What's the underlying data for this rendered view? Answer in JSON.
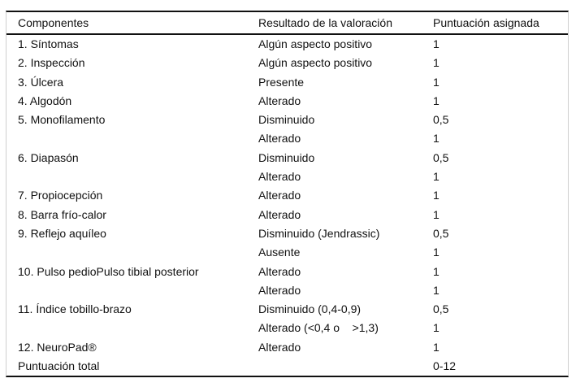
{
  "colors": {
    "background": "#ffffff",
    "text": "#111111",
    "rule_dark": "#111111",
    "rule_light": "#cfcfcf"
  },
  "table": {
    "columns": {
      "component": "Componentes",
      "result": "Resultado de la valoración",
      "score": "Puntuación asignada"
    },
    "rows": [
      {
        "component": "1. Síntomas",
        "result": "Algún aspecto positivo",
        "score": "1"
      },
      {
        "component": "2. Inspección",
        "result": "Algún aspecto positivo",
        "score": "1"
      },
      {
        "component": "3. Úlcera",
        "result": "Presente",
        "score": "1"
      },
      {
        "component": "4. Algodón",
        "result": "Alterado",
        "score": "1"
      },
      {
        "component": "5. Monofilamento",
        "result": "Disminuido",
        "score": "0,5"
      },
      {
        "component": "",
        "result": "Alterado",
        "score": "1"
      },
      {
        "component": "6. Diapasón",
        "result": "Disminuido",
        "score": "0,5"
      },
      {
        "component": "",
        "result": "Alterado",
        "score": "1"
      },
      {
        "component": "7. Propiocepción",
        "result": "Alterado",
        "score": "1"
      },
      {
        "component": "8. Barra frío-calor",
        "result": "Alterado",
        "score": "1"
      },
      {
        "component": "9. Reflejo aquíleo",
        "result": "Disminuido (Jendrassic)",
        "score": "0,5"
      },
      {
        "component": "",
        "result": "Ausente",
        "score": "1"
      },
      {
        "component": "10. Pulso pedioPulso tibial posterior",
        "result": "Alterado",
        "score": "1"
      },
      {
        "component": "",
        "result": "Alterado",
        "score": "1"
      },
      {
        "component": "11. Índice tobillo-brazo",
        "result": "Disminuido (0,4-0,9)",
        "score": "0,5"
      },
      {
        "component": "",
        "result": "Alterado (<0,4 o    >1,3)",
        "score": "1"
      },
      {
        "component": "12. NeuroPad®",
        "result": "Alterado",
        "score": "1"
      },
      {
        "component": "Puntuación total",
        "result": "",
        "score": "0-12"
      }
    ]
  }
}
